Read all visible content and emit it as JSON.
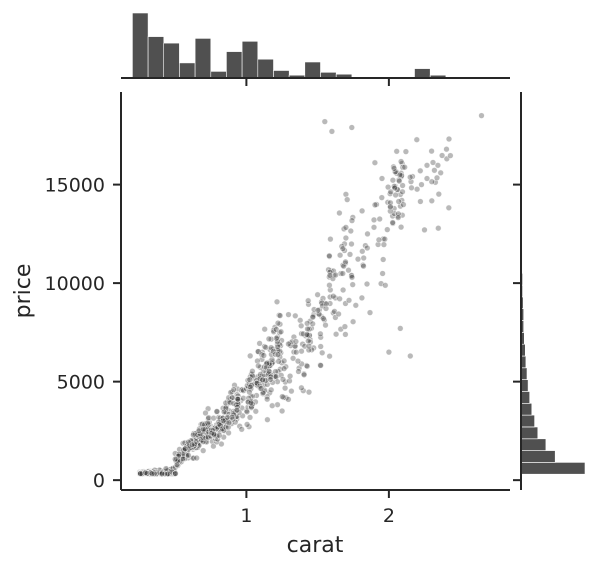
{
  "chart_data": {
    "type": "scatter",
    "xlabel": "carat",
    "ylabel": "price",
    "xlim": [
      0.12,
      2.85
    ],
    "ylim": [
      -500,
      19700
    ],
    "x_ticks": [
      1,
      2
    ],
    "y_ticks": [
      0,
      5000,
      10000,
      15000
    ],
    "marginal_x_histogram": {
      "bin_start": 0.2,
      "bin_width": 0.11,
      "counts": [
        69,
        44,
        37,
        16,
        42,
        7,
        28,
        39,
        20,
        8,
        3,
        17,
        6,
        4,
        0,
        0,
        0,
        0,
        10,
        3,
        1
      ]
    },
    "marginal_y_histogram": {
      "bin_start": 300,
      "bin_width": 600,
      "counts": [
        118,
        63,
        46,
        31,
        25,
        20,
        16,
        13,
        11,
        9,
        8,
        6,
        5,
        5,
        4,
        3,
        3,
        2,
        2,
        1,
        1,
        1,
        1,
        1,
        1,
        1,
        0,
        0,
        0,
        0,
        0
      ]
    },
    "point_groups": [
      {
        "x": [
          0.25,
          0.5
        ],
        "y_at": [
          350,
          350
        ],
        "y_spread": [
          50,
          250
        ],
        "count": 190
      },
      {
        "x": [
          0.5,
          0.75
        ],
        "y_at": [
          900,
          2700
        ],
        "y_spread": [
          300,
          700
        ],
        "count": 170
      },
      {
        "x": [
          0.75,
          0.98
        ],
        "y_at": [
          2200,
          4200
        ],
        "y_spread": [
          600,
          1100
        ],
        "count": 130
      },
      {
        "x": [
          1.0,
          1.25
        ],
        "y_at": [
          3800,
          7000
        ],
        "y_spread": [
          1200,
          2000
        ],
        "count": 160
      },
      {
        "x": [
          1.25,
          1.5
        ],
        "y_at": [
          5000,
          8000
        ],
        "y_spread": [
          1500,
          2300
        ],
        "count": 70
      },
      {
        "x": [
          1.5,
          1.75
        ],
        "y_at": [
          8000,
          11500
        ],
        "y_spread": [
          2500,
          3000
        ],
        "count": 80
      },
      {
        "x": [
          1.75,
          2.0
        ],
        "y_at": [
          10500,
          13000
        ],
        "y_spread": [
          2800,
          3000
        ],
        "count": 30
      },
      {
        "x": [
          2.0,
          2.1
        ],
        "y_at": [
          14500,
          15000
        ],
        "y_spread": [
          2200,
          2200
        ],
        "count": 45
      },
      {
        "x": [
          2.1,
          2.45
        ],
        "y_at": [
          15000,
          16000
        ],
        "y_spread": [
          2000,
          1800
        ],
        "count": 30
      }
    ],
    "outliers": [
      {
        "x": 2.65,
        "y": 18500
      },
      {
        "x": 2.0,
        "y": 6500
      },
      {
        "x": 2.15,
        "y": 6300
      },
      {
        "x": 2.08,
        "y": 7700
      },
      {
        "x": 1.93,
        "y": 12200
      },
      {
        "x": 1.96,
        "y": 11200
      },
      {
        "x": 1.85,
        "y": 12500
      },
      {
        "x": 1.6,
        "y": 17700
      },
      {
        "x": 1.74,
        "y": 17900
      },
      {
        "x": 1.55,
        "y": 18200
      },
      {
        "x": 2.25,
        "y": 12700
      },
      {
        "x": 2.3,
        "y": 16700
      }
    ]
  }
}
